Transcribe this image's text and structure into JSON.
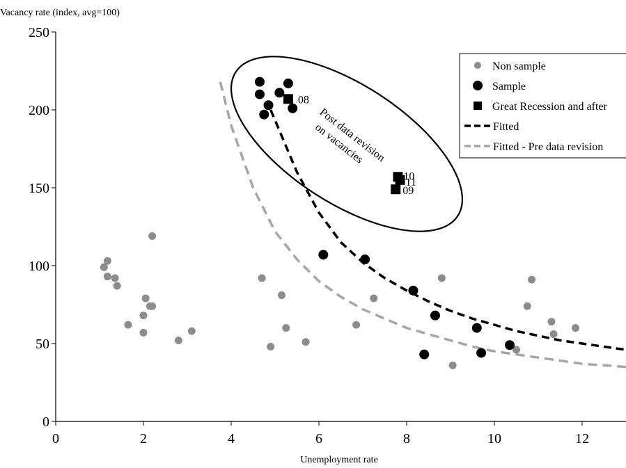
{
  "chart_data": {
    "type": "scatter",
    "xlabel": "Unemployment rate",
    "ylabel": "Vacancy rate (index, avg=100)",
    "xlim": [
      0,
      13
    ],
    "ylim": [
      0,
      250
    ],
    "x_ticks": [
      0,
      2,
      4,
      6,
      8,
      10,
      12
    ],
    "y_ticks": [
      0,
      50,
      100,
      150,
      200,
      250
    ],
    "x_tick_labels": [
      "0",
      "2",
      "4",
      "6",
      "8",
      "10",
      "12"
    ],
    "y_tick_labels": [
      "0",
      "50",
      "100",
      "150",
      "200",
      "250"
    ],
    "grid": false,
    "legend_position": "top-right",
    "annotation": {
      "line1": "Post data revision",
      "line2": "on vacancies"
    },
    "colors": {
      "non_sample": "#8c8c8c",
      "sample": "#000000",
      "fitted": "#000000",
      "fitted_pre": "#a6a6a6"
    },
    "series": [
      {
        "name": "Non sample",
        "marker": "circle",
        "points": [
          [
            1.1,
            99
          ],
          [
            1.18,
            103
          ],
          [
            1.18,
            93
          ],
          [
            1.35,
            92
          ],
          [
            1.4,
            87
          ],
          [
            1.65,
            62
          ],
          [
            2.0,
            57
          ],
          [
            2.0,
            68
          ],
          [
            2.05,
            79
          ],
          [
            2.15,
            74
          ],
          [
            2.2,
            74
          ],
          [
            2.2,
            119
          ],
          [
            2.8,
            52
          ],
          [
            3.1,
            58
          ],
          [
            4.7,
            92
          ],
          [
            4.9,
            48
          ],
          [
            5.15,
            81
          ],
          [
            5.25,
            60
          ],
          [
            5.7,
            51
          ],
          [
            6.85,
            62
          ],
          [
            7.25,
            79
          ],
          [
            8.8,
            92
          ],
          [
            9.05,
            36
          ],
          [
            10.5,
            46
          ],
          [
            10.75,
            74
          ],
          [
            10.85,
            91
          ],
          [
            11.3,
            64
          ],
          [
            11.35,
            56
          ],
          [
            11.85,
            60
          ]
        ]
      },
      {
        "name": "Sample",
        "marker": "circle",
        "points": [
          [
            4.65,
            218
          ],
          [
            4.65,
            210
          ],
          [
            4.75,
            197
          ],
          [
            4.85,
            203
          ],
          [
            5.1,
            211
          ],
          [
            5.3,
            217
          ],
          [
            5.4,
            201
          ],
          [
            6.1,
            107
          ],
          [
            7.05,
            104
          ],
          [
            8.15,
            84
          ],
          [
            8.4,
            43
          ],
          [
            8.65,
            68
          ],
          [
            9.6,
            60
          ],
          [
            9.7,
            44
          ],
          [
            10.35,
            49
          ]
        ]
      },
      {
        "name": "Great Recession and after",
        "marker": "square",
        "points": [
          {
            "x": 5.3,
            "y": 207,
            "label": "08"
          },
          {
            "x": 7.75,
            "y": 149,
            "label": "09"
          },
          {
            "x": 7.8,
            "y": 157,
            "label": "10"
          },
          {
            "x": 7.85,
            "y": 155,
            "label": "11"
          }
        ]
      },
      {
        "name": "Fitted",
        "line": "dashed",
        "x": [
          4.9,
          5.5,
          6.0,
          6.5,
          7.0,
          7.5,
          8.0,
          8.5,
          9.0,
          9.5,
          10.0,
          10.5,
          11.0,
          11.5,
          12.0,
          12.5,
          13.0
        ],
        "y": [
          200,
          160,
          134,
          115,
          102,
          92,
          84,
          77,
          71,
          66,
          62,
          58,
          55,
          52,
          50,
          48,
          46
        ]
      },
      {
        "name": "Fitted - Pre data revision",
        "line": "dashed",
        "x": [
          3.75,
          4.0,
          4.5,
          5.0,
          5.5,
          6.0,
          6.5,
          7.0,
          7.5,
          8.0,
          8.5,
          9.0,
          9.5,
          10.0,
          10.5,
          11.0,
          11.5,
          12.0,
          12.5,
          13.0
        ],
        "y": [
          218,
          190,
          150,
          122,
          104,
          90,
          80,
          72,
          66,
          60,
          56,
          52,
          48,
          45,
          43,
          41,
          39,
          37,
          36,
          35
        ]
      }
    ]
  }
}
